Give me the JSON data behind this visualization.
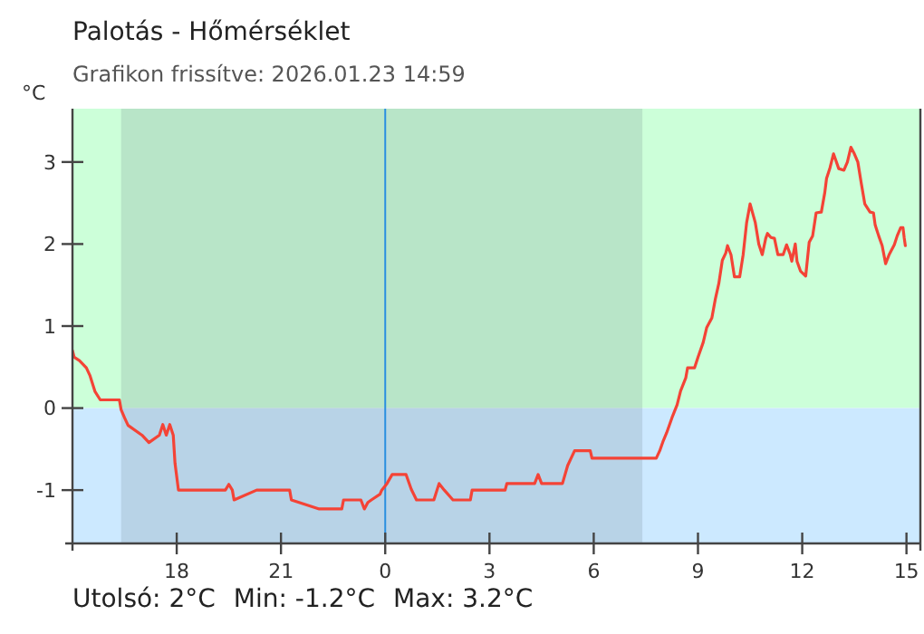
{
  "chart_data": {
    "type": "line",
    "title": "Palotás - Hőmérséklet",
    "subtitle": "Grafikon frissítve: 2026.01.23 14:59",
    "ylabel": "°C",
    "annotations": [
      "Utolsó: 2°C",
      "Min: -1.2°C",
      "Max: 3.2°C"
    ],
    "xlim": [
      "2026-01-22T15:00",
      "2026-01-23T15:24"
    ],
    "ylim": [
      -1.65,
      3.65
    ],
    "xticks": [
      {
        "value": "2026-01-22T18:00",
        "label": "18"
      },
      {
        "value": "2026-01-22T21:00",
        "label": "21"
      },
      {
        "value": "2026-01-23T00:00",
        "label": "0"
      },
      {
        "value": "2026-01-23T03:00",
        "label": "3"
      },
      {
        "value": "2026-01-23T06:00",
        "label": "6"
      },
      {
        "value": "2026-01-23T09:00",
        "label": "9"
      },
      {
        "value": "2026-01-23T12:00",
        "label": "12"
      },
      {
        "value": "2026-01-23T15:00",
        "label": "15"
      }
    ],
    "yticks": [
      -1,
      0,
      1,
      2,
      3
    ],
    "grid": false,
    "bands": [
      {
        "axis": "y",
        "from": 0,
        "to": 3.65,
        "color": "#ccffd9"
      },
      {
        "axis": "y",
        "from": -1.65,
        "to": 0,
        "color": "#cce9ff"
      },
      {
        "axis": "x",
        "from": "2026-01-22T16:24",
        "to": "2026-01-23T07:24",
        "color": "#6b7f86"
      }
    ],
    "ref_lines": [
      {
        "axis": "x",
        "value": "2026-01-23T00:00",
        "color": "#2a8fe0"
      }
    ],
    "series": [
      {
        "color": "#f44336",
        "x": [
          "2026-01-22T15:00",
          "2026-01-22T15:03",
          "2026-01-22T15:12",
          "2026-01-22T15:24",
          "2026-01-22T15:30",
          "2026-01-22T15:39",
          "2026-01-22T15:48",
          "2026-01-22T16:21",
          "2026-01-22T16:24",
          "2026-01-22T16:30",
          "2026-01-22T16:36",
          "2026-01-22T17:00",
          "2026-01-22T17:12",
          "2026-01-22T17:30",
          "2026-01-22T17:36",
          "2026-01-22T17:42",
          "2026-01-22T17:48",
          "2026-01-22T17:54",
          "2026-01-22T17:57",
          "2026-01-22T18:03",
          "2026-01-22T19:24",
          "2026-01-22T19:30",
          "2026-01-22T19:36",
          "2026-01-22T19:39",
          "2026-01-22T20:18",
          "2026-01-22T21:15",
          "2026-01-22T21:18",
          "2026-01-22T22:06",
          "2026-01-22T22:45",
          "2026-01-22T22:48",
          "2026-01-22T23:18",
          "2026-01-22T23:24",
          "2026-01-22T23:30",
          "2026-01-22T23:36",
          "2026-01-22T23:51",
          "2026-01-22T23:54",
          "2026-01-23T00:03",
          "2026-01-23T00:12",
          "2026-01-23T00:36",
          "2026-01-23T00:45",
          "2026-01-23T00:54",
          "2026-01-23T01:24",
          "2026-01-23T01:33",
          "2026-01-23T01:42",
          "2026-01-23T01:57",
          "2026-01-23T02:27",
          "2026-01-23T02:30",
          "2026-01-23T03:27",
          "2026-01-23T03:30",
          "2026-01-23T04:18",
          "2026-01-23T04:24",
          "2026-01-23T04:30",
          "2026-01-23T05:06",
          "2026-01-23T05:15",
          "2026-01-23T05:27",
          "2026-01-23T05:54",
          "2026-01-23T05:57",
          "2026-01-23T07:48",
          "2026-01-23T07:54",
          "2026-01-23T08:00",
          "2026-01-23T08:06",
          "2026-01-23T08:15",
          "2026-01-23T08:24",
          "2026-01-23T08:30",
          "2026-01-23T08:39",
          "2026-01-23T08:42",
          "2026-01-23T08:54",
          "2026-01-23T09:00",
          "2026-01-23T09:09",
          "2026-01-23T09:15",
          "2026-01-23T09:24",
          "2026-01-23T09:30",
          "2026-01-23T09:36",
          "2026-01-23T09:42",
          "2026-01-23T09:48",
          "2026-01-23T09:51",
          "2026-01-23T09:57",
          "2026-01-23T10:03",
          "2026-01-23T10:12",
          "2026-01-23T10:18",
          "2026-01-23T10:24",
          "2026-01-23T10:30",
          "2026-01-23T10:39",
          "2026-01-23T10:45",
          "2026-01-23T10:51",
          "2026-01-23T10:57",
          "2026-01-23T11:00",
          "2026-01-23T11:06",
          "2026-01-23T11:12",
          "2026-01-23T11:18",
          "2026-01-23T11:27",
          "2026-01-23T11:33",
          "2026-01-23T11:39",
          "2026-01-23T11:42",
          "2026-01-23T11:48",
          "2026-01-23T11:51",
          "2026-01-23T11:57",
          "2026-01-23T12:06",
          "2026-01-23T12:12",
          "2026-01-23T12:18",
          "2026-01-23T12:24",
          "2026-01-23T12:33",
          "2026-01-23T12:39",
          "2026-01-23T12:42",
          "2026-01-23T12:48",
          "2026-01-23T12:54",
          "2026-01-23T13:03",
          "2026-01-23T13:12",
          "2026-01-23T13:18",
          "2026-01-23T13:24",
          "2026-01-23T13:30",
          "2026-01-23T13:36",
          "2026-01-23T13:42",
          "2026-01-23T13:48",
          "2026-01-23T13:57",
          "2026-01-23T14:03",
          "2026-01-23T14:06",
          "2026-01-23T14:12",
          "2026-01-23T14:18",
          "2026-01-23T14:24",
          "2026-01-23T14:30",
          "2026-01-23T14:39",
          "2026-01-23T14:44",
          "2026-01-23T14:50",
          "2026-01-23T14:54",
          "2026-01-23T14:56",
          "2026-01-23T14:58"
        ],
        "values": [
          0.7,
          0.62,
          0.58,
          0.49,
          0.4,
          0.2,
          0.1,
          0.1,
          -0.02,
          -0.12,
          -0.21,
          -0.33,
          -0.42,
          -0.33,
          -0.2,
          -0.33,
          -0.2,
          -0.33,
          -0.67,
          -1.0,
          -1.0,
          -0.93,
          -1.0,
          -1.12,
          -1.0,
          -1.0,
          -1.12,
          -1.23,
          -1.23,
          -1.12,
          -1.12,
          -1.23,
          -1.15,
          -1.12,
          -1.05,
          -1.0,
          -0.92,
          -0.81,
          -0.81,
          -0.99,
          -1.12,
          -1.12,
          -0.92,
          -1.0,
          -1.12,
          -1.12,
          -1.0,
          -1.0,
          -0.92,
          -0.92,
          -0.81,
          -0.92,
          -0.92,
          -0.7,
          -0.52,
          -0.52,
          -0.61,
          -0.61,
          -0.52,
          -0.4,
          -0.3,
          -0.12,
          0.04,
          0.21,
          0.37,
          0.49,
          0.49,
          0.62,
          0.8,
          0.98,
          1.1,
          1.33,
          1.52,
          1.8,
          1.89,
          1.98,
          1.87,
          1.6,
          1.6,
          1.87,
          2.26,
          2.49,
          2.26,
          2.0,
          1.87,
          2.07,
          2.13,
          2.08,
          2.07,
          1.87,
          1.87,
          1.99,
          1.88,
          1.79,
          2.0,
          1.79,
          1.67,
          1.61,
          2.02,
          2.1,
          2.38,
          2.39,
          2.63,
          2.8,
          2.93,
          3.1,
          2.92,
          2.9,
          3.0,
          3.18,
          3.1,
          3.0,
          2.74,
          2.49,
          2.39,
          2.38,
          2.23,
          2.1,
          1.98,
          1.76,
          1.87,
          1.99,
          2.1,
          2.2,
          2.2,
          2.08,
          1.98
        ]
      }
    ]
  }
}
